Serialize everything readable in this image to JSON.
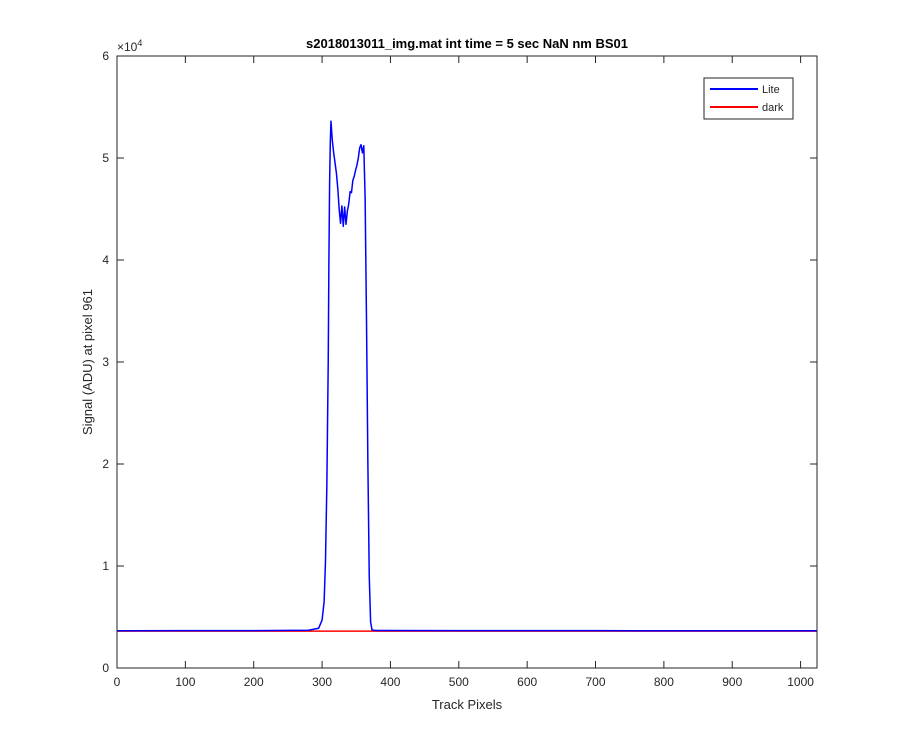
{
  "chart_data": {
    "type": "line",
    "title": "s2018013011_img.mat int time = 5 sec  NaN nm BS01",
    "xlabel": "Track Pixels",
    "ylabel": "Signal (ADU) at pixel 961",
    "exponent_label": "×10",
    "exponent_power": "4",
    "xlim": [
      0,
      1024
    ],
    "ylim": [
      0,
      60000
    ],
    "x_ticks": [
      0,
      100,
      200,
      300,
      400,
      500,
      600,
      700,
      800,
      900,
      1000
    ],
    "x_tick_labels": [
      "0",
      "100",
      "200",
      "300",
      "400",
      "500",
      "600",
      "700",
      "800",
      "900",
      "1000"
    ],
    "y_ticks": [
      0,
      10000,
      20000,
      30000,
      40000,
      50000,
      60000
    ],
    "y_tick_labels": [
      "0",
      "1",
      "2",
      "3",
      "4",
      "5",
      "6"
    ],
    "grid": false,
    "legend_position": "top-right",
    "series": [
      {
        "name": "Lite",
        "color": "#0000ff",
        "x": [
          0,
          100,
          200,
          280,
          295,
          300,
          303,
          305,
          307,
          309,
          310,
          311,
          312,
          313,
          315,
          317,
          319,
          321,
          323,
          325,
          327,
          329,
          331,
          333,
          335,
          337,
          339,
          341,
          343,
          345,
          347,
          349,
          351,
          353,
          355,
          357,
          359,
          361,
          363,
          365,
          367,
          369,
          371,
          373,
          375,
          380,
          400,
          500,
          600,
          700,
          800,
          900,
          1024
        ],
        "y": [
          3650,
          3660,
          3660,
          3700,
          3900,
          4700,
          6500,
          10500,
          18000,
          30000,
          40000,
          47500,
          51500,
          53600,
          51700,
          50500,
          49500,
          48500,
          47000,
          45000,
          43600,
          45300,
          43300,
          45200,
          43500,
          44800,
          45500,
          46700,
          46600,
          47800,
          48200,
          48800,
          49300,
          50000,
          51000,
          51300,
          50500,
          51200,
          46000,
          34000,
          20000,
          9000,
          4500,
          3750,
          3700,
          3680,
          3680,
          3670,
          3660,
          3660,
          3650,
          3650,
          3650
        ]
      },
      {
        "name": "dark",
        "color": "#ff0000",
        "x": [
          0,
          1024
        ],
        "y": [
          3620,
          3620
        ]
      }
    ]
  }
}
